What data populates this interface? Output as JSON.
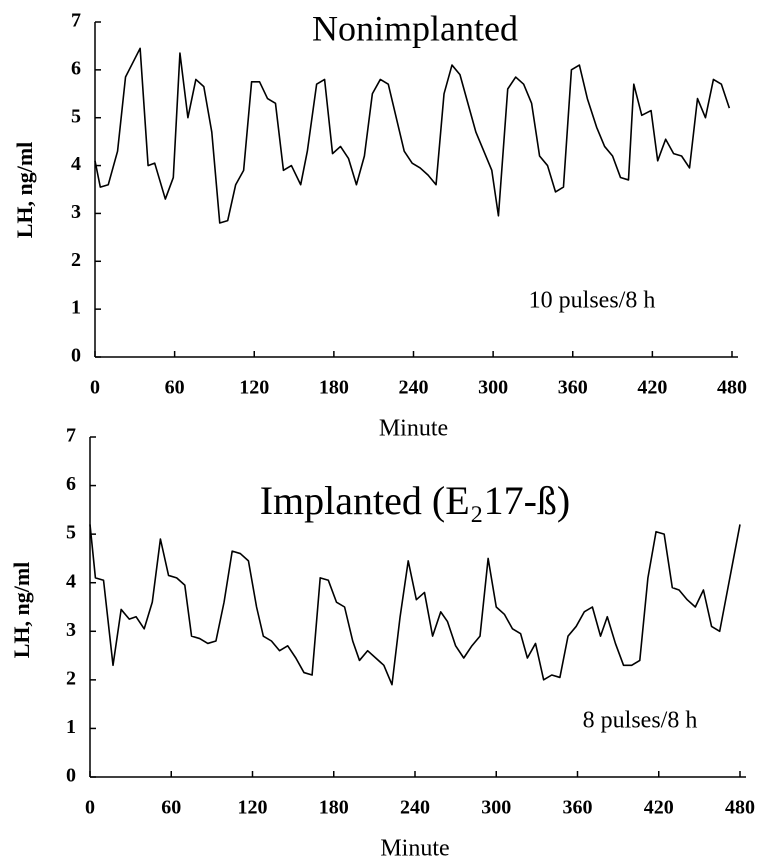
{
  "chart_data": [
    {
      "type": "line",
      "title": "Nonimplanted",
      "annotation": "10 pulses/8 h",
      "x_label": "Minute",
      "y_label": "LH, ng/ml",
      "x": [
        0,
        4,
        10,
        17,
        23,
        34,
        40,
        45,
        53,
        59,
        64,
        70,
        76,
        82,
        88,
        94,
        100,
        106,
        112,
        118,
        124,
        130,
        136,
        142,
        148,
        155,
        160,
        167,
        173,
        179,
        185,
        191,
        197,
        203,
        209,
        215,
        221,
        227,
        233,
        239,
        245,
        251,
        257,
        263,
        269,
        275,
        281,
        287,
        293,
        299,
        304,
        311,
        317,
        323,
        329,
        335,
        341,
        347,
        353,
        359,
        365,
        371,
        378,
        384,
        390,
        396,
        402,
        406,
        412,
        419,
        424,
        430,
        436,
        442,
        448,
        454,
        460,
        466,
        472,
        478
      ],
      "values": [
        4.1,
        3.55,
        3.6,
        4.3,
        5.85,
        6.45,
        4.0,
        4.05,
        3.3,
        3.75,
        6.35,
        5.0,
        5.8,
        5.65,
        4.7,
        2.8,
        2.85,
        3.6,
        3.9,
        5.75,
        5.75,
        5.4,
        5.3,
        3.9,
        4.0,
        3.6,
        4.3,
        5.7,
        5.8,
        4.25,
        4.4,
        4.15,
        3.6,
        4.2,
        5.5,
        5.8,
        5.7,
        5.0,
        4.3,
        4.05,
        3.95,
        3.8,
        3.6,
        5.5,
        6.1,
        5.9,
        5.3,
        4.7,
        4.3,
        3.9,
        2.95,
        5.6,
        5.85,
        5.7,
        5.3,
        4.2,
        4.0,
        3.45,
        3.55,
        6.0,
        6.1,
        5.4,
        4.8,
        4.4,
        4.2,
        3.75,
        3.7,
        5.7,
        5.05,
        5.15,
        4.1,
        4.55,
        4.25,
        4.2,
        3.95,
        5.4,
        5.0,
        5.8,
        5.7,
        5.2
      ],
      "color": "#000000",
      "xlim": [
        0,
        480
      ],
      "xticks": [
        0,
        60,
        120,
        180,
        240,
        300,
        360,
        420,
        480
      ],
      "ylim": [
        0,
        7
      ],
      "yticks": [
        0,
        1,
        2,
        3,
        4,
        5,
        6,
        7
      ]
    },
    {
      "type": "line",
      "title": "Implanted (E₂17-ß)",
      "annotation": "8 pulses/8 h",
      "x_label": "Minute",
      "y_label": "LH, ng/ml",
      "x": [
        0,
        4,
        10,
        17,
        23,
        29,
        34,
        40,
        46,
        52,
        58,
        64,
        70,
        75,
        81,
        87,
        93,
        99,
        105,
        111,
        117,
        123,
        128,
        134,
        140,
        146,
        152,
        158,
        164,
        170,
        176,
        182,
        188,
        194,
        199,
        205,
        211,
        217,
        223,
        229,
        235,
        241,
        247,
        253,
        259,
        264,
        270,
        276,
        282,
        288,
        294,
        300,
        306,
        312,
        318,
        323,
        329,
        335,
        341,
        347,
        353,
        359,
        365,
        371,
        377,
        382,
        388,
        394,
        400,
        406,
        412,
        418,
        424,
        430,
        435,
        441,
        447,
        453,
        459,
        465,
        480
      ],
      "values": [
        5.2,
        4.1,
        4.05,
        2.3,
        3.45,
        3.25,
        3.3,
        3.05,
        3.6,
        4.9,
        4.15,
        4.1,
        3.95,
        2.9,
        2.85,
        2.75,
        2.8,
        3.6,
        4.65,
        4.6,
        4.45,
        3.5,
        2.9,
        2.8,
        2.6,
        2.7,
        2.45,
        2.15,
        2.1,
        4.1,
        4.05,
        3.6,
        3.5,
        2.8,
        2.4,
        2.6,
        2.45,
        2.3,
        1.9,
        3.3,
        4.45,
        3.65,
        3.8,
        2.9,
        3.4,
        3.2,
        2.7,
        2.45,
        2.7,
        2.9,
        4.5,
        3.5,
        3.35,
        3.05,
        2.95,
        2.45,
        2.75,
        2.0,
        2.1,
        2.05,
        2.9,
        3.1,
        3.4,
        3.5,
        2.9,
        3.3,
        2.75,
        2.3,
        2.3,
        2.4,
        4.1,
        5.05,
        5.0,
        3.9,
        3.85,
        3.65,
        3.5,
        3.85,
        3.1,
        3.0,
        5.2
      ],
      "color": "#000000",
      "xlim": [
        0,
        480
      ],
      "xticks": [
        0,
        60,
        120,
        180,
        240,
        300,
        360,
        420,
        480
      ],
      "ylim": [
        0,
        7
      ],
      "yticks": [
        0,
        1,
        2,
        3,
        4,
        5,
        6,
        7
      ]
    }
  ]
}
